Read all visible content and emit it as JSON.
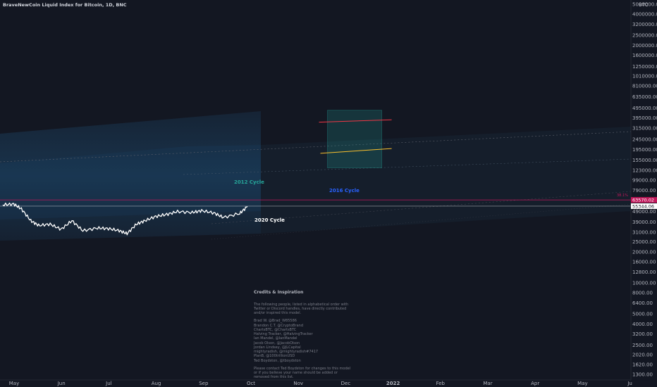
{
  "header": {
    "title": "BraveNewCoin Liquid Index for Bitcoin, 1D, BNC"
  },
  "price_axis": {
    "currency": "BTC",
    "ticks": [
      "5000000.00",
      "4000000.00",
      "3200000.00",
      "2500000.00",
      "2000000.00",
      "1600000.00",
      "1250000.00",
      "1010000.00",
      "810000.00",
      "635000.00",
      "495000.00",
      "395000.00",
      "315000.00",
      "245000.00",
      "195000.00",
      "155000.00",
      "123000.00",
      "99000.00",
      "79000.00",
      "63000.00",
      "49000.00",
      "39000.00",
      "31000.00",
      "25000.00",
      "20000.00",
      "16000.00",
      "12800.00",
      "10000.00",
      "8000.00",
      "6400.00",
      "5000.00",
      "4000.00",
      "3200.00",
      "2500.00",
      "2020.00",
      "1620.00",
      "1300.00"
    ],
    "marker_upper": {
      "text": "63570.02",
      "color": "#c2185b"
    },
    "marker_lower": {
      "text": "55344.06",
      "color": "#ffffff"
    },
    "small_label": "38.1%"
  },
  "time_axis": {
    "ticks": [
      "May",
      "Jun",
      "Jul",
      "Aug",
      "Sep",
      "Oct",
      "Nov",
      "Dec",
      "2022",
      "Feb",
      "Mar",
      "Apr",
      "May",
      "Ju"
    ]
  },
  "chart_data": {
    "type": "line",
    "title": "BraveNewCoin Liquid Index for Bitcoin, 1D, BNC",
    "scale": "log",
    "ylim": [
      1300,
      5000000
    ],
    "xlim": [
      "2021-05",
      "2022-06"
    ],
    "grid": false,
    "series": [
      {
        "name": "BTC",
        "color": "#ffffff",
        "x": [
          "2021-05-01",
          "2021-05-08",
          "2021-05-13",
          "2021-05-19",
          "2021-05-24",
          "2021-06-01",
          "2021-06-08",
          "2021-06-15",
          "2021-06-22",
          "2021-07-01",
          "2021-07-08",
          "2021-07-15",
          "2021-07-20",
          "2021-07-26",
          "2021-08-01",
          "2021-08-08",
          "2021-08-15",
          "2021-08-22",
          "2021-09-01",
          "2021-09-07",
          "2021-09-15",
          "2021-09-21",
          "2021-10-01",
          "2021-10-06"
        ],
        "values": [
          57000,
          58000,
          52000,
          40000,
          36000,
          37000,
          33000,
          40000,
          32000,
          34000,
          33500,
          32000,
          30000,
          37000,
          40000,
          44000,
          46000,
          49000,
          48000,
          50000,
          47500,
          43000,
          47000,
          55000
        ]
      }
    ],
    "levels": [
      {
        "label": "63570.02",
        "value": 63570.02,
        "color": "#c2185b"
      },
      {
        "label": "55344.06",
        "value": 55344.06,
        "color": "#ffffff"
      }
    ],
    "annotations": [
      {
        "text": "2012 Cycle",
        "color": "#26a69a"
      },
      {
        "text": "2016 Cycle",
        "color": "#2962ff"
      },
      {
        "text": "2020 Cycle",
        "color": "#ffffff"
      }
    ],
    "projection_box": {
      "x": [
        "2021-11-27",
        "2022-01-01"
      ],
      "y": [
        130000,
        470000
      ],
      "upper_line": {
        "color": "#f23645",
        "values": [
          360000,
          380000
        ]
      },
      "lower_line": {
        "color": "#fbc02d",
        "values": [
          180000,
          200000
        ]
      }
    }
  },
  "credits": {
    "heading": "Credits & Inspiration",
    "intro": "The following people, listed in alphabetical order with Twitter or Discord handles, have directly contributed and/or inspired this model.",
    "names": [
      "Brad W. @Brad_W85586",
      "Brandon C.T. @CryptoBrand",
      "ChartsBTC, @ChartsBTC",
      "Halving Tracker, @HalvingTracker",
      "Ian Mandel, @IanMandel",
      "Jacob Olson, @JacobOlson",
      "Jordan Lindsey, @JLCapital",
      "mightyradish, @mightyradish#7417",
      "PlanB, @100trillionUSD",
      "Ted Boydston, @tboydston"
    ],
    "outro": "Please contact Ted Boydston for changes to this model or if you believe your name should be added or removed from this list."
  }
}
